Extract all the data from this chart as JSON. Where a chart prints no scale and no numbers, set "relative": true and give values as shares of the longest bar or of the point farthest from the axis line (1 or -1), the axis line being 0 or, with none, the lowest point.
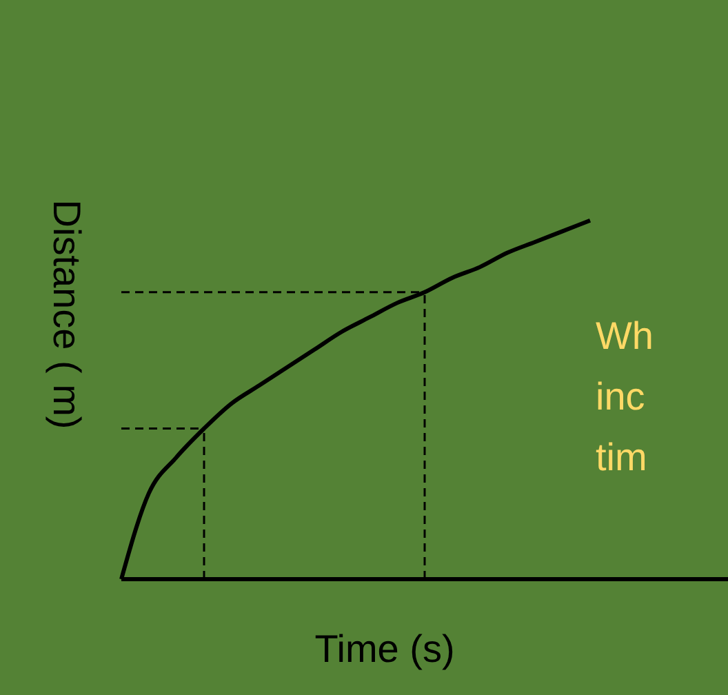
{
  "chart_data": {
    "type": "line",
    "relative": true,
    "xlabel": "Time (s)",
    "ylabel": "Distance ( m)",
    "categories": [
      null,
      null,
      null,
      null,
      null,
      null,
      null,
      null,
      null,
      null,
      null,
      null,
      null,
      null,
      null,
      null,
      null,
      null,
      null,
      null,
      null,
      null,
      null
    ],
    "series": [
      {
        "color": "#000000",
        "values": [
          0,
          0.24,
          0.34,
          0.42,
          0.49,
          0.54,
          0.59,
          0.64,
          0.69,
          0.73,
          0.77,
          0.8,
          0.84,
          0.87,
          0.91,
          0.94,
          0.97,
          1,
          null,
          null,
          null,
          null,
          null
        ]
      }
    ],
    "ref_lines": [
      {
        "axis": "y",
        "value": 0.42,
        "line_style": "dashed",
        "color": "#000000"
      },
      {
        "axis": "y",
        "value": 0.8,
        "line_style": "dashed",
        "color": "#000000"
      }
    ],
    "annotations": [
      "Wh",
      "inc",
      "tim"
    ],
    "marker": "none",
    "line_style": "solid"
  }
}
